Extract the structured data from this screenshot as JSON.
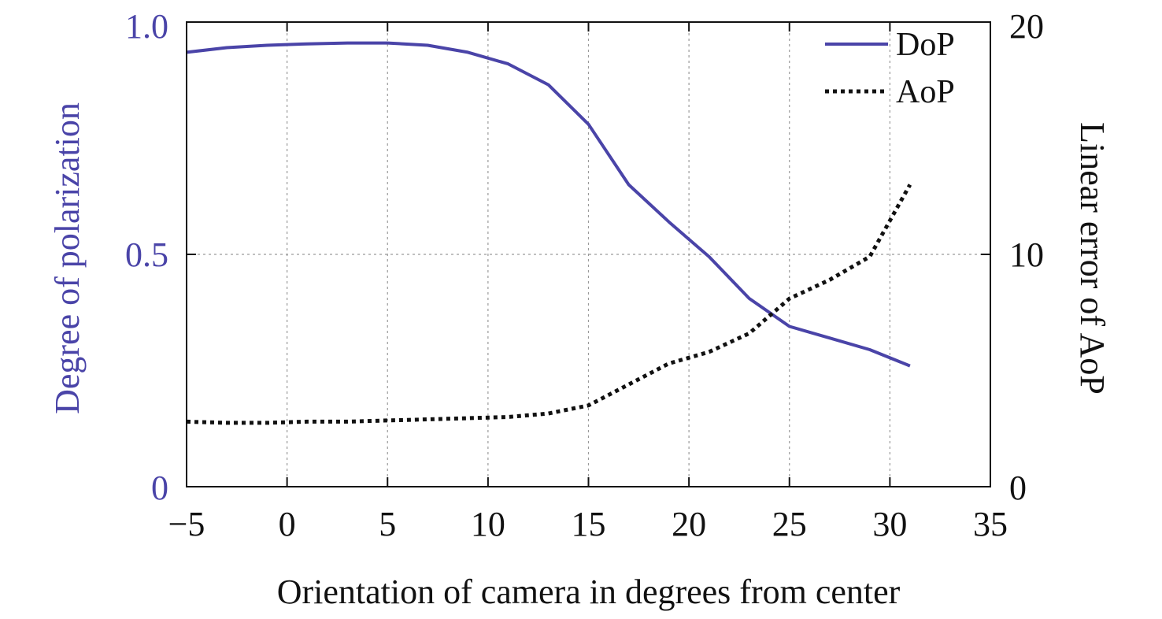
{
  "chart_data": {
    "type": "line",
    "title": "",
    "xlabel": "Orientation of camera in degrees from center",
    "ylabel": "Degree of polarization",
    "y2label": "Linear error of AoP",
    "xlim": [
      -5,
      35
    ],
    "ylim": [
      0,
      1.0
    ],
    "y2lim": [
      0,
      20
    ],
    "x_ticks": [
      -5,
      0,
      5,
      10,
      15,
      20,
      25,
      30,
      35
    ],
    "x_tick_labels": [
      "−5",
      "0",
      "5",
      "10",
      "15",
      "20",
      "25",
      "30",
      "35"
    ],
    "y_ticks": [
      0,
      0.5,
      1.0
    ],
    "y_tick_labels": [
      "0",
      "0.5",
      "1.0"
    ],
    "y2_ticks": [
      0,
      10,
      20
    ],
    "y2_tick_labels": [
      "0",
      "10",
      "20"
    ],
    "grid": true,
    "legend_position": "top-right",
    "colors": {
      "dop": "#4a44a8",
      "aop": "#111111",
      "left_axis": "#4a44a8",
      "text": "#111111",
      "grid": "#9a9a9a"
    },
    "series": [
      {
        "name": "DoP",
        "axis": "left",
        "style": "solid",
        "x": [
          -5,
          -3,
          -1,
          1,
          3,
          5,
          7,
          9,
          11,
          13,
          15,
          17,
          19,
          21,
          23,
          25,
          27,
          29,
          31
        ],
        "y": [
          0.935,
          0.945,
          0.95,
          0.953,
          0.955,
          0.955,
          0.95,
          0.935,
          0.91,
          0.865,
          0.78,
          0.65,
          0.57,
          0.495,
          0.405,
          0.345,
          0.32,
          0.295,
          0.26
        ]
      },
      {
        "name": "AoP",
        "axis": "right",
        "style": "dotted",
        "x": [
          -5,
          -3,
          -1,
          1,
          3,
          5,
          7,
          9,
          11,
          13,
          15,
          17,
          19,
          21,
          23,
          25,
          27,
          29,
          31
        ],
        "y": [
          2.8,
          2.75,
          2.75,
          2.8,
          2.8,
          2.85,
          2.9,
          2.95,
          3.0,
          3.15,
          3.5,
          4.4,
          5.3,
          5.8,
          6.6,
          8.1,
          8.9,
          9.9,
          13.0
        ]
      }
    ]
  }
}
